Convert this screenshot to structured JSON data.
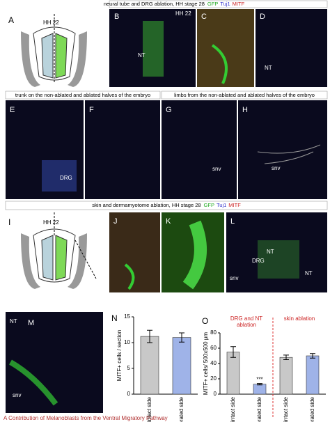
{
  "header_top": {
    "text": "neural tube and DRG ablation, HH stage 28",
    "stains": [
      "GFP",
      "Tuj1",
      "MITF"
    ]
  },
  "header_trunk": "trunk on the non-ablated and ablated halves of the embryo",
  "header_limbs": "limbs from the non-ablated and ablated halves of the embryo",
  "header_skin": {
    "text": "skin and dermamyotome ablation, HH stage 28",
    "stains": [
      "GFP",
      "Tuj1",
      "MITF"
    ]
  },
  "panels": {
    "A": {
      "label": "A",
      "stage": "HH 22"
    },
    "B": {
      "label": "B",
      "stage": "HH 22",
      "tag": "NT"
    },
    "C": {
      "label": "C"
    },
    "D": {
      "label": "D",
      "tag": "NT"
    },
    "E": {
      "label": "E",
      "tag": "DRG"
    },
    "F": {
      "label": "F"
    },
    "G": {
      "label": "G",
      "tag": "snv"
    },
    "H": {
      "label": "H",
      "tag": "snv"
    },
    "I": {
      "label": "I",
      "stage": "HH 22"
    },
    "J": {
      "label": "J"
    },
    "K": {
      "label": "K"
    },
    "L": {
      "label": "L",
      "tags": [
        "NT",
        "DRG",
        "NT",
        "snv"
      ]
    },
    "M": {
      "label": "M",
      "tags": [
        "NT",
        "snv"
      ]
    },
    "N": {
      "label": "N"
    },
    "O": {
      "label": "O"
    }
  },
  "chart_data": [
    {
      "type": "bar",
      "y_label": "MITF+ cells / section",
      "categories": [
        "intact side",
        "operated side"
      ],
      "values": [
        11.2,
        11
      ],
      "errors": [
        1.2,
        0.9
      ],
      "colors": [
        "#c8c8c8",
        "#9fb3e8"
      ],
      "ylim": [
        0,
        15
      ],
      "yticks": [
        0,
        5,
        10,
        15
      ]
    },
    {
      "type": "bar",
      "y_label": "MITF+ cells/ 500x500 μm",
      "categories": [
        "intact side",
        "operated side",
        "intact side",
        "operated side"
      ],
      "values": [
        55,
        13,
        48,
        50
      ],
      "errors": [
        7,
        1,
        3,
        3
      ],
      "colors": [
        "#c8c8c8",
        "#9fb3e8",
        "#c8c8c8",
        "#9fb3e8"
      ],
      "ylim": [
        0,
        80
      ],
      "yticks": [
        0,
        20,
        40,
        60,
        80
      ],
      "groups": [
        [
          "DRG and NT",
          "ablation"
        ],
        [
          "skin ablation"
        ]
      ],
      "annotation": "***"
    }
  ],
  "caption": "A Contribution of Melanoblasts from the Ventral Migratory Pathway"
}
